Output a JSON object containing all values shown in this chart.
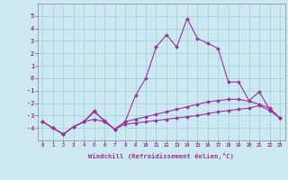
{
  "bg_color": "#cce8f0",
  "grid_color": "#aad4e0",
  "line_color": "#993399",
  "xlabel": "Windchill (Refroidissement éolien,°C)",
  "x": [
    0,
    1,
    2,
    3,
    4,
    5,
    6,
    7,
    8,
    9,
    10,
    11,
    12,
    13,
    14,
    15,
    16,
    17,
    18,
    19,
    20,
    21,
    22,
    23
  ],
  "line1": [
    -3.5,
    -4.0,
    -4.5,
    -3.9,
    -3.5,
    -2.6,
    -3.5,
    -4.1,
    -3.5,
    -1.4,
    0.0,
    2.5,
    3.5,
    2.5,
    4.8,
    3.2,
    2.8,
    2.4,
    -0.3,
    -0.3,
    -1.8,
    -1.1,
    -2.5,
    -3.2
  ],
  "line2": [
    -3.5,
    -4.0,
    -4.5,
    -3.9,
    -3.5,
    -2.7,
    -3.4,
    -4.1,
    -3.5,
    -3.3,
    -3.1,
    -2.9,
    -2.7,
    -2.5,
    -2.3,
    -2.1,
    -1.9,
    -1.8,
    -1.7,
    -1.7,
    -1.85,
    -2.1,
    -2.4,
    -3.2
  ],
  "line3": [
    -3.5,
    -4.0,
    -4.5,
    -3.9,
    -3.5,
    -3.3,
    -3.5,
    -4.1,
    -3.7,
    -3.6,
    -3.5,
    -3.4,
    -3.3,
    -3.2,
    -3.1,
    -3.0,
    -2.85,
    -2.7,
    -2.6,
    -2.5,
    -2.4,
    -2.2,
    -2.6,
    -3.2
  ],
  "ylim": [
    -5,
    6
  ],
  "yticks": [
    -4,
    -3,
    -2,
    -1,
    0,
    1,
    2,
    3,
    4,
    5
  ],
  "xticks": [
    0,
    1,
    2,
    3,
    4,
    5,
    6,
    7,
    8,
    9,
    10,
    11,
    12,
    13,
    14,
    15,
    16,
    17,
    18,
    19,
    20,
    21,
    22,
    23
  ]
}
